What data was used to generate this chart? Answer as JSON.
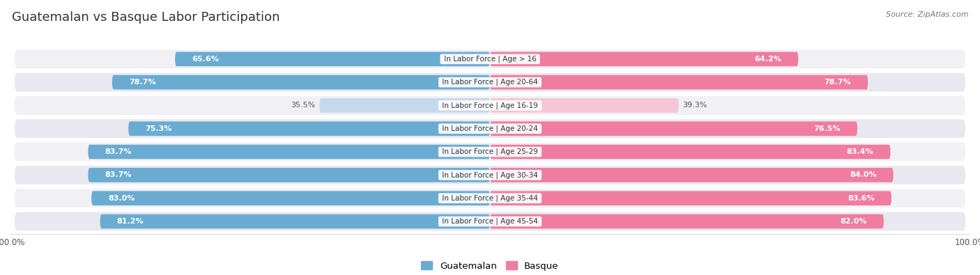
{
  "title": "Guatemalan vs Basque Labor Participation",
  "source": "Source: ZipAtlas.com",
  "categories": [
    "In Labor Force | Age > 16",
    "In Labor Force | Age 20-64",
    "In Labor Force | Age 16-19",
    "In Labor Force | Age 20-24",
    "In Labor Force | Age 25-29",
    "In Labor Force | Age 30-34",
    "In Labor Force | Age 35-44",
    "In Labor Force | Age 45-54"
  ],
  "guatemalan_values": [
    65.6,
    78.7,
    35.5,
    75.3,
    83.7,
    83.7,
    83.0,
    81.2
  ],
  "basque_values": [
    64.2,
    78.7,
    39.3,
    76.5,
    83.4,
    84.0,
    83.6,
    82.0
  ],
  "guatemalan_color": "#6aabd2",
  "basque_color": "#f07ca0",
  "guatemalan_light_color": "#c5d9ec",
  "basque_light_color": "#f5c6d5",
  "bg_row_light": "#f0f0f5",
  "bg_row_dark": "#e4e4ec",
  "title_fontsize": 13,
  "max_val": 100.0,
  "legend_guatemalan": "Guatemalan",
  "legend_basque": "Basque"
}
